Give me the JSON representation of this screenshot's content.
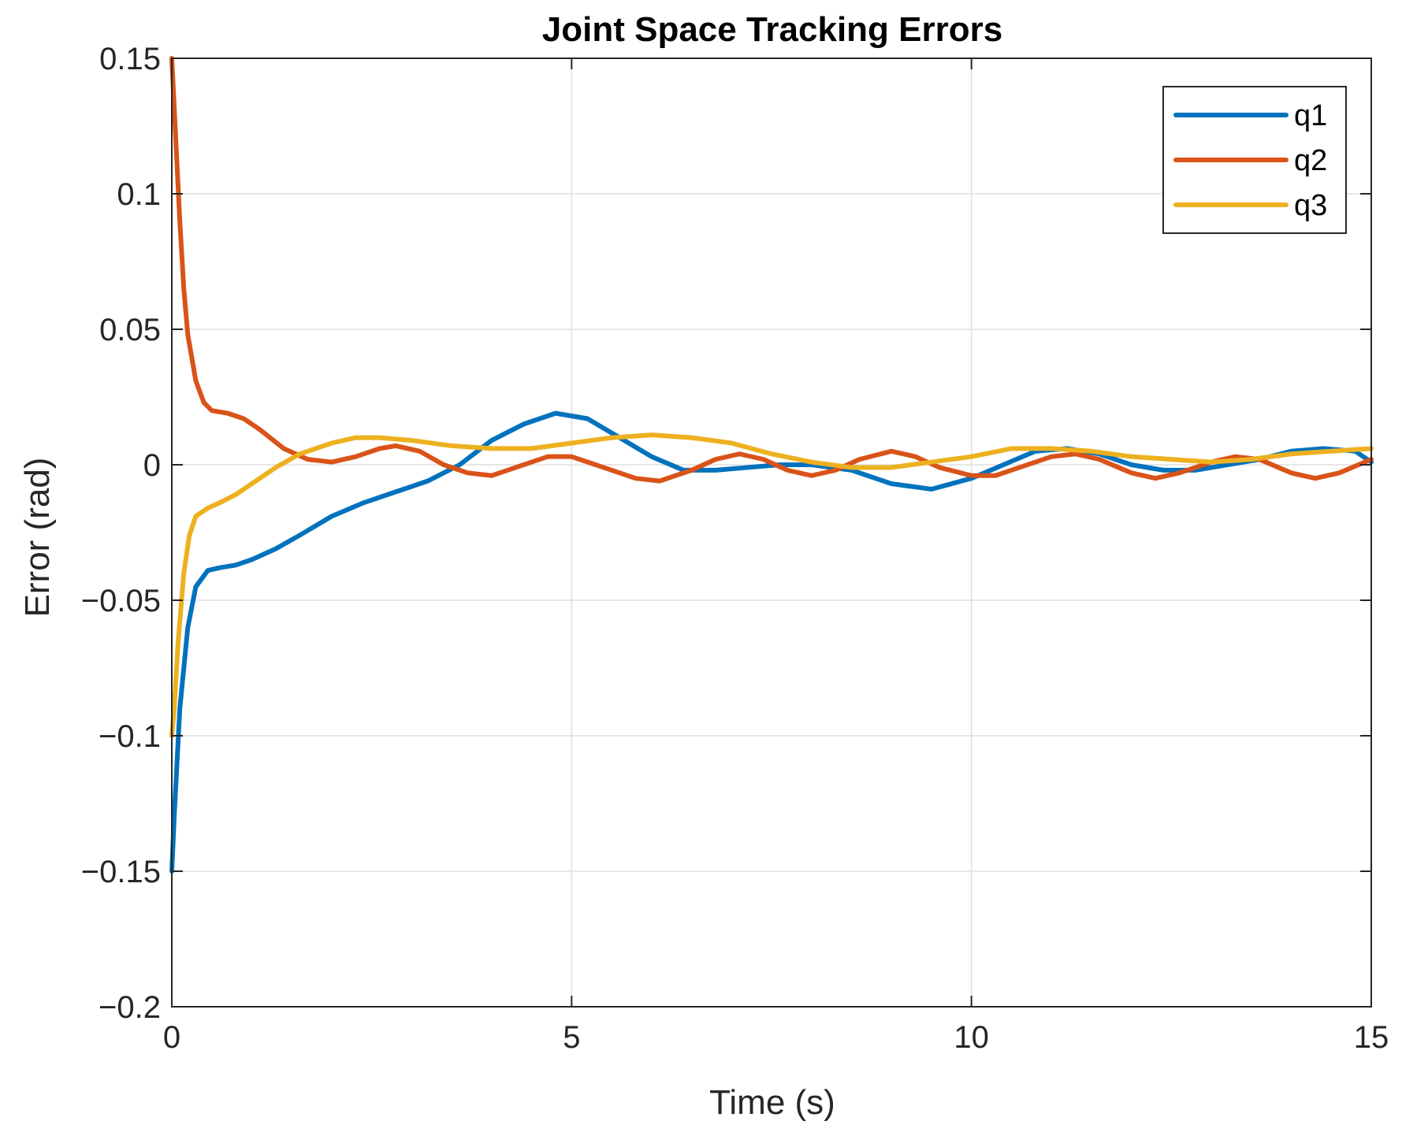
{
  "chart_data": {
    "type": "line",
    "title": "Joint Space Tracking Errors",
    "xlabel": "Time (s)",
    "ylabel": "Error (rad)",
    "xlim": [
      0,
      15
    ],
    "ylim": [
      -0.2,
      0.15
    ],
    "xticks": [
      0,
      5,
      10,
      15
    ],
    "xtick_labels": [
      "0",
      "5",
      "10",
      "15"
    ],
    "yticks": [
      -0.2,
      -0.15,
      -0.1,
      -0.05,
      0,
      0.05,
      0.1,
      0.15
    ],
    "ytick_labels": [
      "−0.2",
      "−0.15",
      "−0.1",
      "−0.05",
      "0",
      "0.05",
      "0.1",
      "0.15"
    ],
    "grid": true,
    "legend_position": "top-right",
    "series": [
      {
        "name": "q1",
        "color": "#0072BD",
        "x": [
          0,
          0.03,
          0.1,
          0.2,
          0.3,
          0.45,
          0.6,
          0.8,
          1.0,
          1.3,
          1.6,
          2.0,
          2.4,
          2.8,
          3.2,
          3.6,
          4.0,
          4.4,
          4.8,
          5.2,
          5.6,
          6.0,
          6.4,
          6.8,
          7.2,
          7.6,
          8.0,
          8.5,
          9.0,
          9.5,
          10.0,
          10.4,
          10.8,
          11.2,
          11.6,
          12.0,
          12.4,
          12.8,
          13.2,
          13.6,
          14.0,
          14.4,
          14.8,
          15.0
        ],
        "y": [
          -0.15,
          -0.13,
          -0.09,
          -0.06,
          -0.045,
          -0.039,
          -0.038,
          -0.037,
          -0.035,
          -0.031,
          -0.026,
          -0.019,
          -0.014,
          -0.01,
          -0.006,
          0.0,
          0.009,
          0.015,
          0.019,
          0.017,
          0.01,
          0.003,
          -0.002,
          -0.002,
          -0.001,
          0.0,
          0.0,
          -0.002,
          -0.007,
          -0.009,
          -0.005,
          0.0,
          0.005,
          0.006,
          0.004,
          0.0,
          -0.002,
          -0.002,
          0.0,
          0.002,
          0.005,
          0.006,
          0.005,
          0.001
        ]
      },
      {
        "name": "q2",
        "color": "#D95319",
        "x": [
          0,
          0.05,
          0.1,
          0.15,
          0.2,
          0.3,
          0.4,
          0.5,
          0.7,
          0.9,
          1.1,
          1.4,
          1.7,
          2.0,
          2.3,
          2.6,
          2.8,
          3.1,
          3.4,
          3.7,
          4.0,
          4.3,
          4.7,
          5.0,
          5.4,
          5.8,
          6.1,
          6.5,
          6.8,
          7.1,
          7.4,
          7.7,
          8.0,
          8.3,
          8.6,
          9.0,
          9.3,
          9.6,
          10.0,
          10.3,
          10.6,
          11.0,
          11.3,
          11.6,
          12.0,
          12.3,
          12.6,
          13.0,
          13.3,
          13.6,
          14.0,
          14.3,
          14.6,
          15.0
        ],
        "y": [
          0.15,
          0.12,
          0.09,
          0.065,
          0.048,
          0.031,
          0.023,
          0.02,
          0.019,
          0.017,
          0.013,
          0.006,
          0.002,
          0.001,
          0.003,
          0.006,
          0.007,
          0.005,
          0.0,
          -0.003,
          -0.004,
          -0.001,
          0.003,
          0.003,
          -0.001,
          -0.005,
          -0.006,
          -0.002,
          0.002,
          0.004,
          0.002,
          -0.002,
          -0.004,
          -0.002,
          0.002,
          0.005,
          0.003,
          -0.001,
          -0.004,
          -0.004,
          -0.001,
          0.003,
          0.004,
          0.002,
          -0.003,
          -0.005,
          -0.003,
          0.001,
          0.003,
          0.002,
          -0.003,
          -0.005,
          -0.003,
          0.002
        ]
      },
      {
        "name": "q3",
        "color": "#EDB120",
        "x": [
          0,
          0.03,
          0.08,
          0.15,
          0.22,
          0.3,
          0.45,
          0.6,
          0.8,
          1.0,
          1.3,
          1.6,
          2.0,
          2.3,
          2.6,
          3.0,
          3.5,
          4.0,
          4.5,
          5.0,
          5.5,
          6.0,
          6.5,
          7.0,
          7.5,
          8.0,
          8.5,
          9.0,
          9.5,
          10.0,
          10.5,
          11.0,
          11.5,
          12.0,
          12.5,
          13.0,
          13.5,
          14.0,
          14.5,
          15.0
        ],
        "y": [
          -0.1,
          -0.09,
          -0.065,
          -0.04,
          -0.026,
          -0.019,
          -0.016,
          -0.014,
          -0.011,
          -0.007,
          -0.001,
          0.004,
          0.008,
          0.01,
          0.01,
          0.009,
          0.007,
          0.006,
          0.006,
          0.008,
          0.01,
          0.011,
          0.01,
          0.008,
          0.004,
          0.001,
          -0.001,
          -0.001,
          0.001,
          0.003,
          0.006,
          0.006,
          0.005,
          0.003,
          0.002,
          0.001,
          0.002,
          0.004,
          0.005,
          0.006
        ]
      }
    ]
  }
}
